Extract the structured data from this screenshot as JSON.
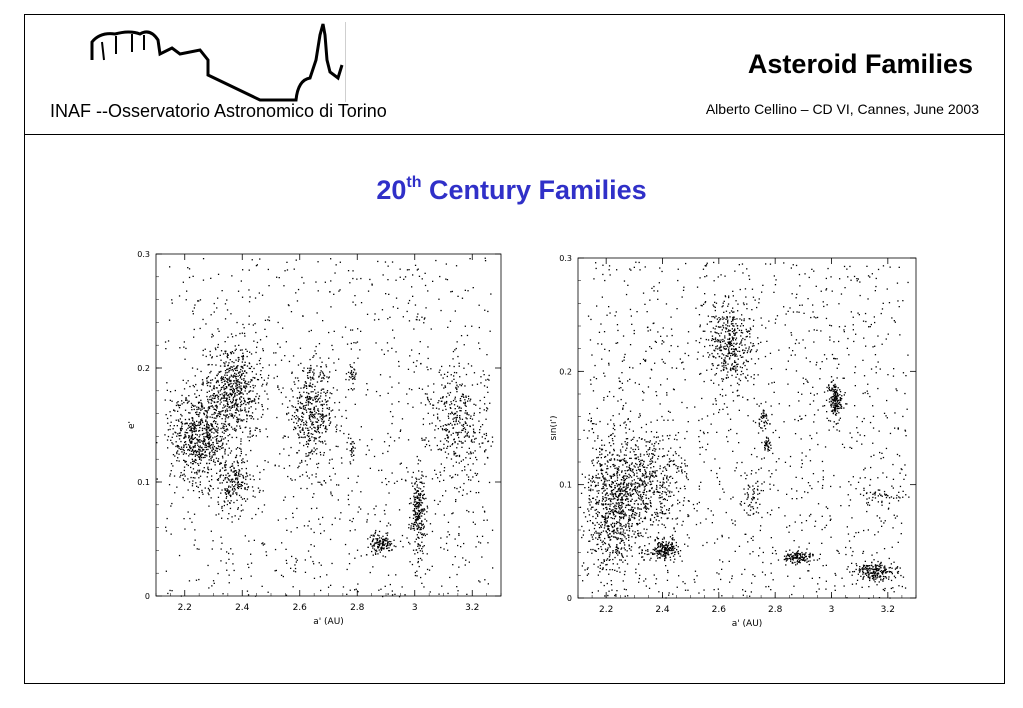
{
  "header": {
    "institute": "INAF --Osservatorio Astronomico di Torino",
    "deck_title": "Asteroid Families",
    "byline": "Alberto Cellino – CD VI, Cannes, June 2003"
  },
  "slide": {
    "title_prefix": "20",
    "title_sup": "th",
    "title_suffix": " Century Families"
  },
  "chart_data": [
    {
      "type": "scatter",
      "title": "",
      "xlabel": "a' (AU)",
      "ylabel": "e'",
      "xlim": [
        2.1,
        3.3
      ],
      "ylim": [
        0,
        0.3
      ],
      "xticks": [
        "2.2",
        "2.4",
        "2.6",
        "2.8",
        "3",
        "3.2"
      ],
      "yticks": [
        "0",
        "0.1",
        "0.2",
        "0.3"
      ],
      "grid": false,
      "gaps_at_a": [
        2.5,
        2.82
      ],
      "background_density": 1400,
      "clusters": [
        {
          "a": 2.25,
          "e": 0.14,
          "sa": 0.05,
          "se": 0.02,
          "n": 650
        },
        {
          "a": 2.37,
          "e": 0.18,
          "sa": 0.05,
          "se": 0.02,
          "n": 600
        },
        {
          "a": 2.37,
          "e": 0.1,
          "sa": 0.04,
          "se": 0.012,
          "n": 200
        },
        {
          "a": 2.64,
          "e": 0.16,
          "sa": 0.04,
          "se": 0.02,
          "n": 420
        },
        {
          "a": 2.78,
          "e": 0.195,
          "sa": 0.008,
          "se": 0.004,
          "n": 30
        },
        {
          "a": 2.78,
          "e": 0.13,
          "sa": 0.008,
          "se": 0.004,
          "n": 20
        },
        {
          "a": 2.88,
          "e": 0.046,
          "sa": 0.02,
          "se": 0.004,
          "n": 130
        },
        {
          "a": 3.01,
          "e": 0.075,
          "sa": 0.012,
          "se": 0.018,
          "n": 230
        },
        {
          "a": 3.15,
          "e": 0.15,
          "sa": 0.05,
          "se": 0.025,
          "n": 330
        }
      ]
    },
    {
      "type": "scatter",
      "title": "",
      "xlabel": "a' (AU)",
      "ylabel": "sin(i')",
      "xlim": [
        2.1,
        3.3
      ],
      "ylim": [
        0,
        0.3
      ],
      "xticks": [
        "2.2",
        "2.4",
        "2.6",
        "2.8",
        "3",
        "3.2"
      ],
      "yticks": [
        "0",
        "0.1",
        "0.2",
        "0.3"
      ],
      "grid": false,
      "gaps_at_a": [
        2.5,
        2.82
      ],
      "background_density": 1700,
      "clusters": [
        {
          "a": 2.22,
          "e": 0.08,
          "sa": 0.05,
          "se": 0.03,
          "n": 750
        },
        {
          "a": 2.35,
          "e": 0.1,
          "sa": 0.07,
          "se": 0.025,
          "n": 500
        },
        {
          "a": 2.4,
          "e": 0.043,
          "sa": 0.03,
          "se": 0.004,
          "n": 180
        },
        {
          "a": 2.64,
          "e": 0.225,
          "sa": 0.04,
          "se": 0.018,
          "n": 380
        },
        {
          "a": 2.76,
          "e": 0.158,
          "sa": 0.012,
          "se": 0.005,
          "n": 40
        },
        {
          "a": 2.77,
          "e": 0.136,
          "sa": 0.01,
          "se": 0.004,
          "n": 35
        },
        {
          "a": 2.72,
          "e": 0.09,
          "sa": 0.02,
          "se": 0.012,
          "n": 60
        },
        {
          "a": 2.88,
          "e": 0.036,
          "sa": 0.025,
          "se": 0.003,
          "n": 130
        },
        {
          "a": 3.01,
          "e": 0.175,
          "sa": 0.012,
          "se": 0.008,
          "n": 160
        },
        {
          "a": 3.15,
          "e": 0.024,
          "sa": 0.04,
          "se": 0.004,
          "n": 200
        },
        {
          "a": 3.18,
          "e": 0.09,
          "sa": 0.04,
          "se": 0.004,
          "n": 50
        }
      ]
    }
  ]
}
